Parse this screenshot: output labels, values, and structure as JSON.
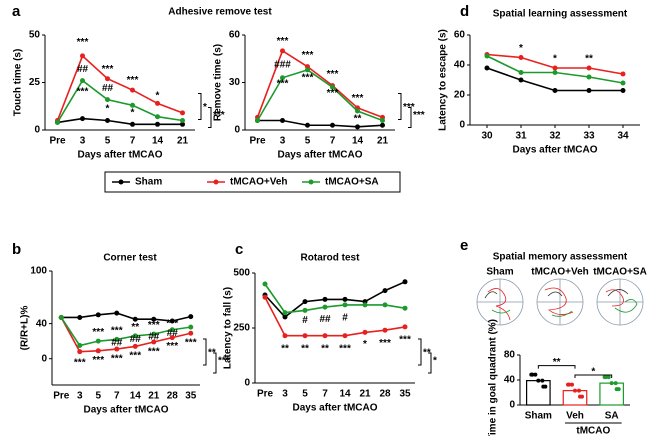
{
  "chart_data": [
    {
      "type": "line",
      "panel": "a",
      "title": "Adhesive remove test",
      "ylabel": "Touch time (s)",
      "xlabel": "Days after tMCAO",
      "categories": [
        "Pre",
        "3",
        "5",
        "7",
        "14",
        "21"
      ],
      "ylim": [
        0,
        50
      ],
      "yticks": [
        0,
        25,
        50
      ],
      "series": [
        {
          "name": "Sham",
          "color": "#000000",
          "values": [
            4,
            6,
            5,
            3,
            3,
            3
          ]
        },
        {
          "name": "tMCAO+Veh",
          "color": "#e8201e",
          "values": [
            5,
            39,
            27,
            21,
            14,
            9
          ]
        },
        {
          "name": "tMCAO+SA",
          "color": "#1c9a2c",
          "values": [
            4,
            26,
            16,
            13,
            7,
            5
          ]
        }
      ],
      "annotations": [
        {
          "text": "***",
          "at": 1,
          "y": 46
        },
        {
          "text": "##",
          "at": 1,
          "y": 32
        },
        {
          "text": "***",
          "at": 1,
          "y": 20
        },
        {
          "text": "***",
          "at": 2,
          "y": 32
        },
        {
          "text": "##",
          "at": 2,
          "y": 22
        },
        {
          "text": "*",
          "at": 2,
          "y": 11
        },
        {
          "text": "***",
          "at": 3,
          "y": 26
        },
        {
          "text": "*",
          "at": 3,
          "y": 9
        },
        {
          "text": "*",
          "at": 4,
          "y": 18
        }
      ],
      "bracket_labels": [
        "*",
        "***"
      ]
    },
    {
      "type": "line",
      "ylabel": "Remove time (s)",
      "xlabel": "Days after tMCAO",
      "categories": [
        "Pre",
        "3",
        "5",
        "7",
        "14",
        "21"
      ],
      "ylim": [
        0,
        60
      ],
      "yticks": [
        0,
        30,
        60
      ],
      "series": [
        {
          "name": "Sham",
          "color": "#000000",
          "values": [
            6,
            6,
            3,
            3,
            2,
            3
          ]
        },
        {
          "name": "tMCAO+Veh",
          "color": "#e8201e",
          "values": [
            8,
            50,
            40,
            28,
            14,
            8
          ]
        },
        {
          "name": "tMCAO+SA",
          "color": "#1c9a2c",
          "values": [
            6,
            33,
            38,
            27,
            12,
            6
          ]
        }
      ],
      "annotations": [
        {
          "text": "***",
          "at": 1,
          "y": 56
        },
        {
          "text": "###",
          "at": 1,
          "y": 41
        },
        {
          "text": "***",
          "at": 1,
          "y": 29
        },
        {
          "text": "***",
          "at": 2,
          "y": 47
        },
        {
          "text": "***",
          "at": 2,
          "y": 33
        },
        {
          "text": "***",
          "at": 3,
          "y": 35
        },
        {
          "text": "***",
          "at": 3,
          "y": 23
        },
        {
          "text": "***",
          "at": 4,
          "y": 20
        },
        {
          "text": "**",
          "at": 4,
          "y": 7
        }
      ],
      "bracket_labels": [
        "***",
        "***"
      ]
    },
    {
      "type": "line",
      "panel": "b",
      "title": "Corner test",
      "ylabel": "(R/R+L)%",
      "xlabel": "Days after tMCAO",
      "categories": [
        "Pre",
        "3",
        "5",
        "7",
        "14",
        "21",
        "28",
        "35"
      ],
      "ylim": [
        -30,
        100
      ],
      "yticks": [
        0,
        40,
        100
      ],
      "series": [
        {
          "name": "Sham",
          "color": "#000000",
          "values": [
            47,
            47,
            50,
            52,
            45,
            45,
            43,
            48
          ]
        },
        {
          "name": "tMCAO+Veh",
          "color": "#e8201e",
          "values": [
            47,
            8,
            9,
            11,
            14,
            19,
            24,
            29
          ]
        },
        {
          "name": "tMCAO+SA",
          "color": "#1c9a2c",
          "values": [
            47,
            15,
            20,
            22,
            26,
            28,
            33,
            36
          ]
        }
      ],
      "annotations": [
        {
          "text": "***",
          "at": 1,
          "y": -5
        },
        {
          "text": "***",
          "at": 2,
          "y": 30
        },
        {
          "text": "***",
          "at": 2,
          "y": -2
        },
        {
          "text": "***",
          "at": 3,
          "y": 32
        },
        {
          "text": "##",
          "at": 3,
          "y": 18
        },
        {
          "text": "***",
          "at": 3,
          "y": 0
        },
        {
          "text": "**",
          "at": 4,
          "y": 36
        },
        {
          "text": "##",
          "at": 4,
          "y": 22
        },
        {
          "text": "***",
          "at": 4,
          "y": 3
        },
        {
          "text": "***",
          "at": 5,
          "y": 38
        },
        {
          "text": "##",
          "at": 5,
          "y": 25
        },
        {
          "text": "***",
          "at": 5,
          "y": 8
        },
        {
          "text": "***",
          "at": 6,
          "y": 40
        },
        {
          "text": "##",
          "at": 6,
          "y": 29
        },
        {
          "text": "***",
          "at": 6,
          "y": 14
        },
        {
          "text": "***",
          "at": 7,
          "y": 18
        }
      ],
      "bracket_labels": [
        "**",
        "***"
      ]
    },
    {
      "type": "line",
      "panel": "c",
      "title": "Rotarod test",
      "ylabel": "Latency to fall (s)",
      "xlabel": "Days after tMCAO",
      "categories": [
        "Pre",
        "3",
        "5",
        "7",
        "14",
        "21",
        "28",
        "35"
      ],
      "ylim": [
        0,
        500
      ],
      "yticks": [
        0,
        250,
        500
      ],
      "series": [
        {
          "name": "Sham",
          "color": "#000000",
          "values": [
            400,
            300,
            370,
            380,
            380,
            370,
            420,
            460
          ]
        },
        {
          "name": "tMCAO+Veh",
          "color": "#e8201e",
          "values": [
            390,
            215,
            215,
            215,
            215,
            230,
            240,
            255
          ]
        },
        {
          "name": "tMCAO+SA",
          "color": "#1c9a2c",
          "values": [
            450,
            320,
            330,
            345,
            355,
            355,
            355,
            340
          ]
        }
      ],
      "annotations": [
        {
          "text": "**",
          "at": 1,
          "y": 155
        },
        {
          "text": "#",
          "at": 2,
          "y": 285
        },
        {
          "text": "**",
          "at": 2,
          "y": 155
        },
        {
          "text": "##",
          "at": 3,
          "y": 290
        },
        {
          "text": "**",
          "at": 3,
          "y": 155
        },
        {
          "text": "#",
          "at": 4,
          "y": 295
        },
        {
          "text": "***",
          "at": 4,
          "y": 155
        },
        {
          "text": "*",
          "at": 5,
          "y": 175
        },
        {
          "text": "***",
          "at": 6,
          "y": 180
        },
        {
          "text": "***",
          "at": 7,
          "y": 195
        }
      ],
      "bracket_labels": [
        "**",
        "*"
      ]
    },
    {
      "type": "line",
      "panel": "d",
      "title": "Spatial learning assessment",
      "ylabel": "Latency to escape (s)",
      "xlabel": "Days after tMCAO",
      "x": [
        30,
        31,
        32,
        33,
        34
      ],
      "xlim": [
        29.5,
        34.5
      ],
      "xticks": [
        30,
        31,
        32,
        33,
        34
      ],
      "ylim": [
        0,
        60
      ],
      "yticks": [
        0,
        20,
        40,
        60
      ],
      "series": [
        {
          "name": "Sham",
          "color": "#000000",
          "values": [
            38,
            30,
            23,
            23,
            23
          ]
        },
        {
          "name": "tMCAO+Veh",
          "color": "#e8201e",
          "values": [
            47,
            45,
            38,
            38,
            34
          ]
        },
        {
          "name": "tMCAO+SA",
          "color": "#1c9a2c",
          "values": [
            46,
            35,
            35,
            32,
            28
          ]
        }
      ],
      "annotations": [
        {
          "text": "*",
          "at": 1,
          "y": 51
        },
        {
          "text": "*",
          "at": 2,
          "y": 44
        },
        {
          "text": "**",
          "at": 3,
          "y": 44
        }
      ]
    },
    {
      "type": "bar",
      "panel": "e",
      "title": "Spatial memory assessment",
      "image_labels": [
        "Sham",
        "tMCAO+Veh",
        "tMCAO+SA"
      ],
      "ylabel": "Time in goal quadrant (%)",
      "group_label": "tMCAO",
      "categories": [
        "Sham",
        "Veh",
        "SA"
      ],
      "values": [
        39,
        23,
        35
      ],
      "colors": [
        "#000000",
        "#e8201e",
        "#1c9a2c"
      ],
      "ylim": [
        0,
        80
      ],
      "yticks": [
        0,
        40,
        80
      ],
      "annotations": [
        {
          "text": "**",
          "at": 0.5,
          "y": 68
        },
        {
          "text": "*",
          "at": 1.5,
          "y": 53
        }
      ]
    }
  ]
}
